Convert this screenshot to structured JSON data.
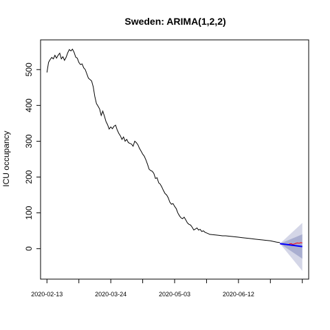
{
  "chart_data": {
    "type": "line",
    "title": "Sweden: ARIMA(1,2,2)",
    "xlabel": "",
    "ylabel": "ICU occupancy",
    "x_tick_labels": [
      "2020-02-13",
      "2020-03-24",
      "2020-05-03",
      "2020-06-12"
    ],
    "y_ticks": [
      0,
      100,
      200,
      300,
      400,
      500
    ],
    "ylim": [
      -85,
      583
    ],
    "xlim": [
      -4,
      164
    ],
    "grid": false,
    "series": [
      {
        "role": "observed",
        "color": "#000000",
        "x": [
          0,
          1,
          2,
          3,
          4,
          5,
          6,
          7,
          8,
          9,
          10,
          11,
          12,
          13,
          14,
          15,
          16,
          17,
          18,
          19,
          20,
          21,
          22,
          23,
          24,
          25,
          26,
          27,
          28,
          29,
          30,
          31,
          32,
          33,
          34,
          35,
          36,
          37,
          38,
          39,
          40,
          41,
          42,
          43,
          44,
          45,
          46,
          47,
          48,
          49,
          50,
          51,
          52,
          53,
          54,
          55,
          56,
          57,
          58,
          59,
          60,
          61,
          62,
          63,
          64,
          65,
          66,
          67,
          68,
          69,
          70,
          71,
          72,
          73,
          74,
          75,
          76,
          77,
          78,
          79,
          80,
          81,
          82,
          83,
          84,
          85,
          86,
          87,
          88,
          89,
          90,
          91,
          92,
          93,
          94,
          95,
          96,
          97,
          98,
          99,
          100,
          101,
          102,
          104,
          106,
          108,
          110,
          112,
          114,
          116,
          118,
          120,
          122,
          124,
          126,
          128,
          130,
          132,
          134,
          136,
          138,
          140,
          142,
          144,
          146
        ],
        "y": [
          492,
          520,
          528,
          534,
          530,
          540,
          532,
          540,
          546,
          530,
          536,
          526,
          534,
          547,
          556,
          552,
          557,
          548,
          535,
          532,
          520,
          514,
          516,
          505,
          500,
          488,
          476,
          472,
          468,
          452,
          425,
          405,
          398,
          390,
          372,
          384,
          370,
          355,
          346,
          334,
          340,
          335,
          342,
          345,
          332,
          322,
          315,
          305,
          312,
          300,
          305,
          296,
          294,
          292,
          286,
          300,
          296,
          290,
          280,
          272,
          264,
          258,
          248,
          236,
          222,
          218,
          216,
          210,
          196,
          198,
          184,
          180,
          172,
          162,
          154,
          150,
          142,
          130,
          124,
          126,
          118,
          112,
          100,
          92,
          86,
          84,
          88,
          80,
          72,
          68,
          66,
          60,
          52,
          55,
          58,
          52,
          54,
          48,
          50,
          46,
          44,
          42,
          40,
          39,
          38,
          37,
          36,
          36,
          35,
          34,
          33,
          32,
          31,
          30,
          29,
          28,
          27,
          26,
          25,
          24,
          23,
          22,
          20,
          18,
          17
        ]
      },
      {
        "role": "actual (held-out)",
        "color": "#ff0000",
        "x": [
          146,
          147,
          148,
          149,
          150,
          151,
          152,
          153,
          154,
          155,
          156,
          157,
          158,
          159,
          160
        ],
        "y": [
          14,
          12,
          14,
          11,
          12,
          10,
          13,
          14,
          12,
          13,
          15,
          16,
          15,
          17,
          16
        ]
      },
      {
        "role": "forecast mean",
        "color": "#0000ff",
        "x": [
          146,
          160
        ],
        "y": [
          14,
          6
        ]
      }
    ],
    "forecast_intervals": {
      "x": [
        146,
        160
      ],
      "inner_lower": [
        14,
        -28
      ],
      "inner_upper": [
        14,
        40
      ],
      "outer_lower": [
        14,
        -62
      ],
      "outer_upper": [
        14,
        72
      ],
      "inner_color": "#a9aed0",
      "outer_color": "#d4d6e7"
    }
  }
}
